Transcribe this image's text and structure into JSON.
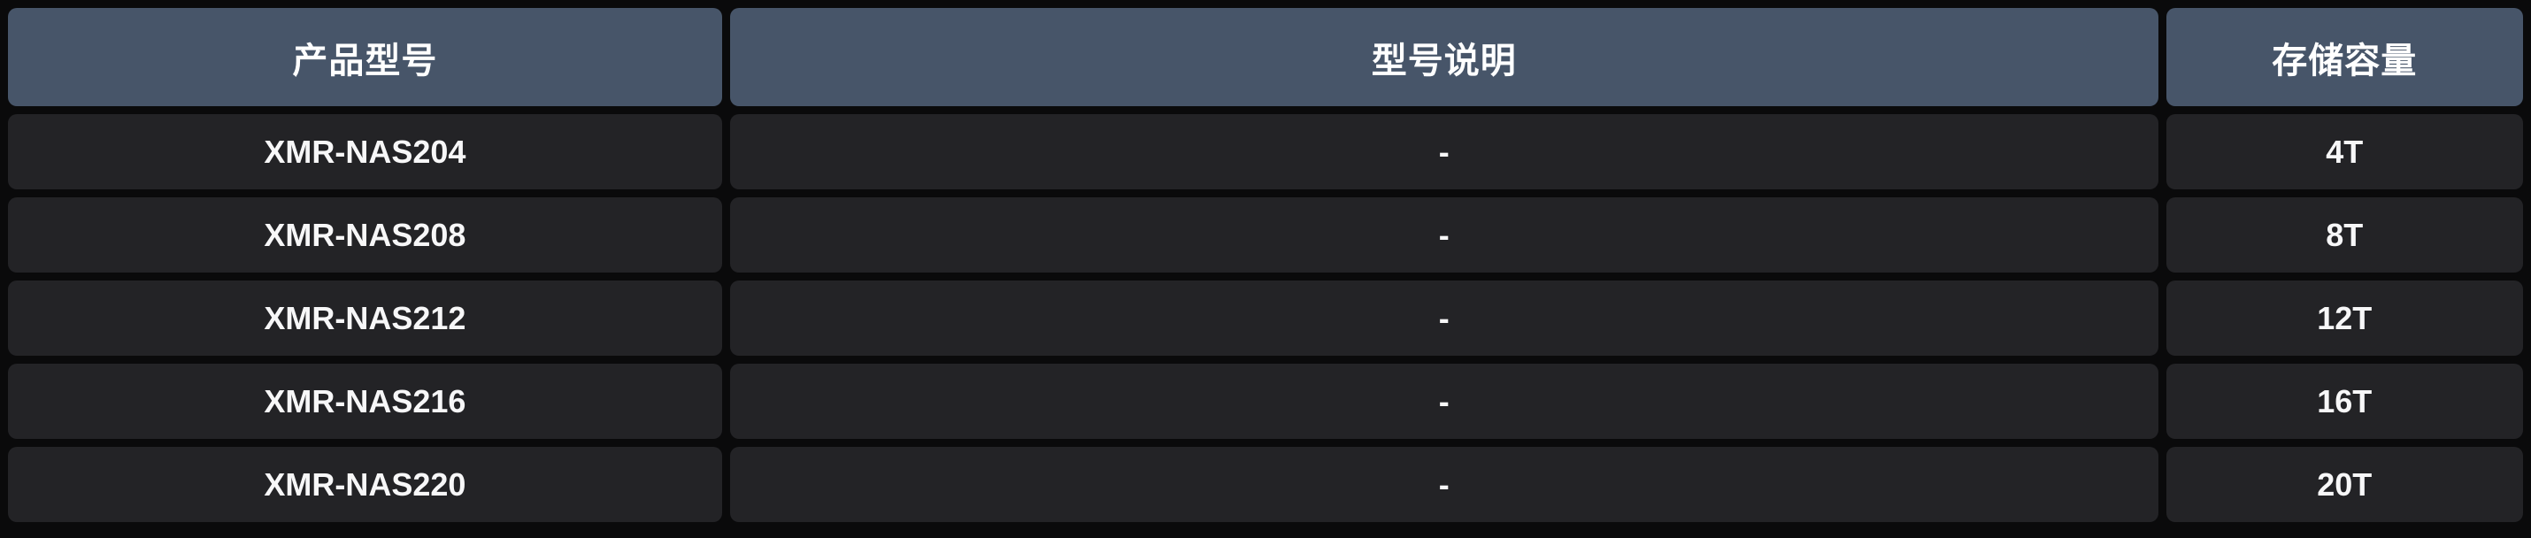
{
  "table": {
    "columns": [
      {
        "label": "产品型号"
      },
      {
        "label": "型号说明"
      },
      {
        "label": "存储容量"
      }
    ],
    "rows": [
      {
        "model": "XMR-NAS204",
        "description": "-",
        "capacity": "4T"
      },
      {
        "model": "XMR-NAS208",
        "description": "-",
        "capacity": "8T"
      },
      {
        "model": "XMR-NAS212",
        "description": "-",
        "capacity": "12T"
      },
      {
        "model": "XMR-NAS216",
        "description": "-",
        "capacity": "16T"
      },
      {
        "model": "XMR-NAS220",
        "description": "-",
        "capacity": "20T"
      }
    ]
  },
  "colors": {
    "background": "#0a0a0b",
    "header_background": "#475569",
    "row_background": "#232326",
    "header_text": "#ffffff",
    "row_text": "#f7f7f8"
  }
}
